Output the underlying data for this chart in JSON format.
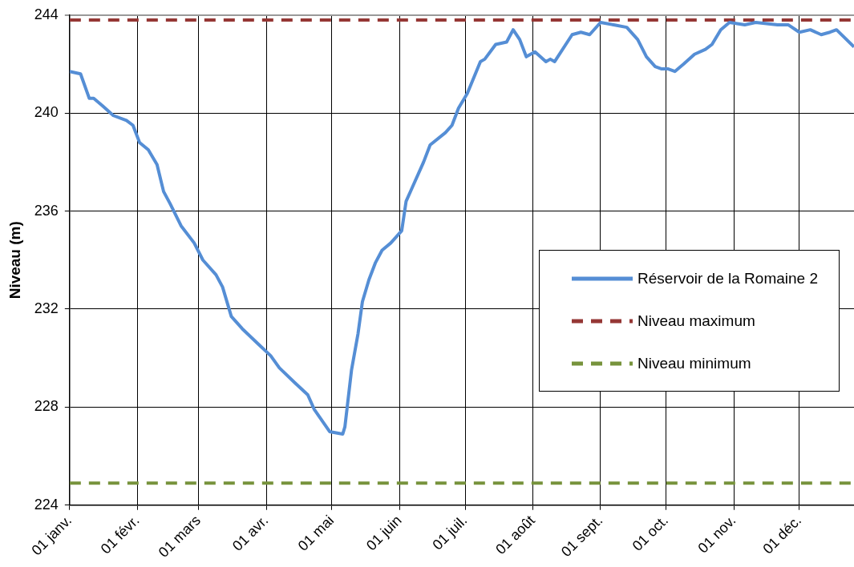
{
  "chart_data": {
    "type": "line",
    "ylabel": "Niveau (m)",
    "xlim": [
      "--01-01",
      "--12-26"
    ],
    "xticks": [
      {
        "value": "--01-01",
        "label": "01 janv."
      },
      {
        "value": "--02-01",
        "label": "01 févr."
      },
      {
        "value": "--03-01",
        "label": "01 mars"
      },
      {
        "value": "--04-01",
        "label": "01 avr."
      },
      {
        "value": "--05-01",
        "label": "01 mai"
      },
      {
        "value": "--06-01",
        "label": "01 juin"
      },
      {
        "value": "--07-01",
        "label": "01 juil."
      },
      {
        "value": "--08-01",
        "label": "01 août"
      },
      {
        "value": "--09-01",
        "label": "01 sept."
      },
      {
        "value": "--10-01",
        "label": "01 oct."
      },
      {
        "value": "--11-01",
        "label": "01 nov."
      },
      {
        "value": "--12-01",
        "label": "01 déc."
      }
    ],
    "ylim": [
      224,
      244
    ],
    "yticks": [
      224,
      228,
      232,
      236,
      240,
      244
    ],
    "grid": true,
    "legend": "right",
    "marker": "none",
    "series": [
      {
        "name": "Réservoir de la Romaine 2",
        "color": "#558ed5",
        "line_style": "solid",
        "x": [
          "--01-01",
          "--01-06",
          "--01-10",
          "--01-12",
          "--01-16",
          "--01-21",
          "--01-27",
          "--01-30",
          "--02-02",
          "--02-06",
          "--02-10",
          "--02-13",
          "--02-16",
          "--02-21",
          "--02-27",
          "--03-03",
          "--03-09",
          "--03-12",
          "--03-16",
          "--03-21",
          "--03-28",
          "--04-03",
          "--04-07",
          "--04-14",
          "--04-20",
          "--04-23",
          "--04-30",
          "--05-06",
          "--05-07",
          "--05-10",
          "--05-13",
          "--05-15",
          "--05-18",
          "--05-21",
          "--05-24",
          "--05-28",
          "--06-02",
          "--06-04",
          "--06-07",
          "--06-12",
          "--06-15",
          "--06-22",
          "--06-25",
          "--06-28",
          "--07-02",
          "--07-08",
          "--07-10",
          "--07-15",
          "--07-20",
          "--07-23",
          "--07-26",
          "--07-29",
          "--08-02",
          "--08-07",
          "--08-09",
          "--08-11",
          "--08-19",
          "--08-23",
          "--08-27",
          "--09-01",
          "--09-07",
          "--09-13",
          "--09-18",
          "--09-22",
          "--09-26",
          "--09-29",
          "--10-02",
          "--10-05",
          "--10-09",
          "--10-14",
          "--10-19",
          "--10-22",
          "--10-26",
          "--10-30",
          "--11-06",
          "--11-11",
          "--11-21",
          "--11-26",
          "--12-01",
          "--12-06",
          "--12-11",
          "--12-15",
          "--12-18",
          "--12-26"
        ],
        "values": [
          241.7,
          241.6,
          240.6,
          240.6,
          240.3,
          239.9,
          239.7,
          239.5,
          238.8,
          238.5,
          237.9,
          236.8,
          236.3,
          235.4,
          234.7,
          234.0,
          233.4,
          232.9,
          231.7,
          231.2,
          230.6,
          230.1,
          229.6,
          229.0,
          228.5,
          227.9,
          227.0,
          226.9,
          227.2,
          229.5,
          231.0,
          232.3,
          233.2,
          233.9,
          234.4,
          234.7,
          235.2,
          236.4,
          237.0,
          238.0,
          238.7,
          239.2,
          239.5,
          240.2,
          240.8,
          242.1,
          242.2,
          242.8,
          242.9,
          243.4,
          243.0,
          242.3,
          242.5,
          242.1,
          242.2,
          242.1,
          243.2,
          243.3,
          243.2,
          243.7,
          243.6,
          243.5,
          243.0,
          242.3,
          241.9,
          241.8,
          241.8,
          241.7,
          242.0,
          242.4,
          242.6,
          242.8,
          243.4,
          243.7,
          243.6,
          243.7,
          243.6,
          243.6,
          243.3,
          243.4,
          243.2,
          243.3,
          243.4,
          242.7
        ]
      },
      {
        "name": "Niveau maximum",
        "color": "#953735",
        "line_style": "dashed",
        "x": [
          "--01-01",
          "--12-26"
        ],
        "values": [
          243.8,
          243.8
        ]
      },
      {
        "name": "Niveau minimum",
        "color": "#77933c",
        "line_style": "dashed",
        "x": [
          "--01-01",
          "--12-26"
        ],
        "values": [
          224.9,
          224.9
        ]
      }
    ]
  }
}
